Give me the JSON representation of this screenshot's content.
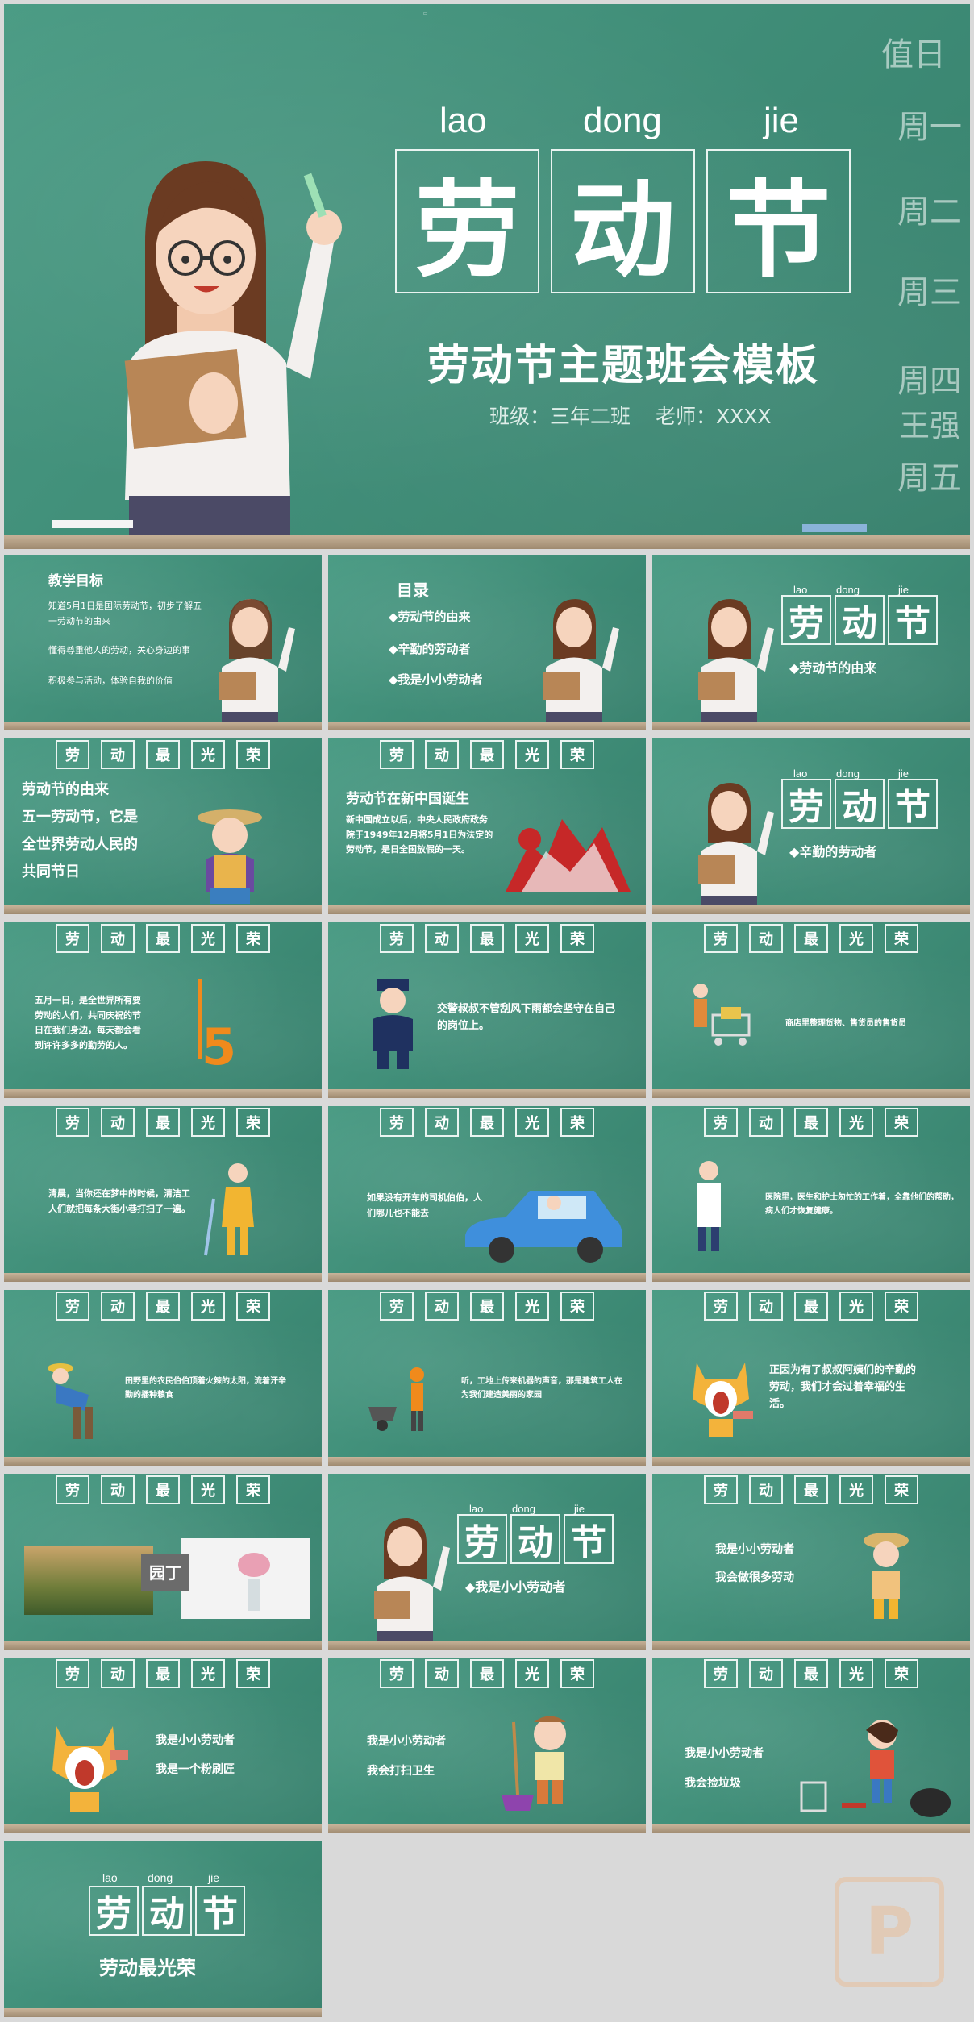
{
  "hero": {
    "pinyin": [
      "lao",
      "dong",
      "jie"
    ],
    "title_chars": [
      "劳",
      "动",
      "节"
    ],
    "subtitle": "劳动节主题班会模板",
    "class_info": "班级：三年二班",
    "teacher_info": "老师：XXXX",
    "schedule": [
      "值日",
      "周一",
      "周二",
      "周三",
      "周四",
      "周五"
    ],
    "schedule_names": [
      "王强"
    ]
  },
  "header_chars": [
    "劳",
    "动",
    "最",
    "光",
    "荣"
  ],
  "slides": {
    "goals": {
      "title": "教学目标",
      "items": [
        "知道5月1日是国际劳动节，初步了解五一劳动节的由来",
        "懂得尊重他人的劳动，关心身边的事",
        "积极参与活动，体验自我的价值"
      ]
    },
    "toc": {
      "title": "目录",
      "items": [
        "◆劳动节的由来",
        "◆辛勤的劳动者",
        "◆我是小小劳动者"
      ]
    },
    "section1": "◆劳动节的由来",
    "origin": {
      "title": "劳动节的由来",
      "lines": [
        "五一劳动节，它是",
        "全世界劳动人民的",
        "共同节日"
      ]
    },
    "newchina": {
      "title": "劳动节在新中国诞生",
      "text": "新中国成立以后，中央人民政府政务院于1949年12月将5月1日为法定的劳动节，是日全国放假的一天。"
    },
    "section2": "◆辛勤的劳动者",
    "mayday": "五月一日，是全世界所有要劳动的人们，共同庆祝的节日在我们身边，每天都会看到许许多多的勤劳的人。",
    "police": "交警叔叔不管刮风下雨都会坚守在自己的岗位上。",
    "shop": "商店里整理货物、售货员的售货员",
    "cleaner": "清晨，当你还在梦中的时候，清洁工人们就把每条大街小巷打扫了一遍。",
    "driver": "如果没有开车的司机伯伯，人们哪儿也不能去",
    "doctor": "医院里，医生和护士匆忙的工作着，全靠他们的帮助，病人们才恢复健康。",
    "farmer": "田野里的农民伯伯顶着火辣的太阳，流着汗辛勤的播种粮食",
    "builder": "听，工地上传来机器的声音，那是建筑工人在为我们建造美丽的家园",
    "thanks": "正因为有了叔叔阿姨们的辛勤的劳动，我们才会过着幸福的生活。",
    "gardener": "园丁",
    "section3": "◆我是小小劳动者",
    "kid1": [
      "我是小小劳动者",
      "我会做很多劳动"
    ],
    "kid2": [
      "我是小小劳动者",
      "我是一个粉刷匠"
    ],
    "kid3": [
      "我是小小劳动者",
      "我会打扫卫生"
    ],
    "kid4": [
      "我是小小劳动者",
      "我会捡垃圾"
    ],
    "ending": "劳动最光荣",
    "five_label": "5"
  },
  "colors": {
    "board": "#3d8f79",
    "chalk": "#ffffff",
    "tray": "#b9a486"
  }
}
